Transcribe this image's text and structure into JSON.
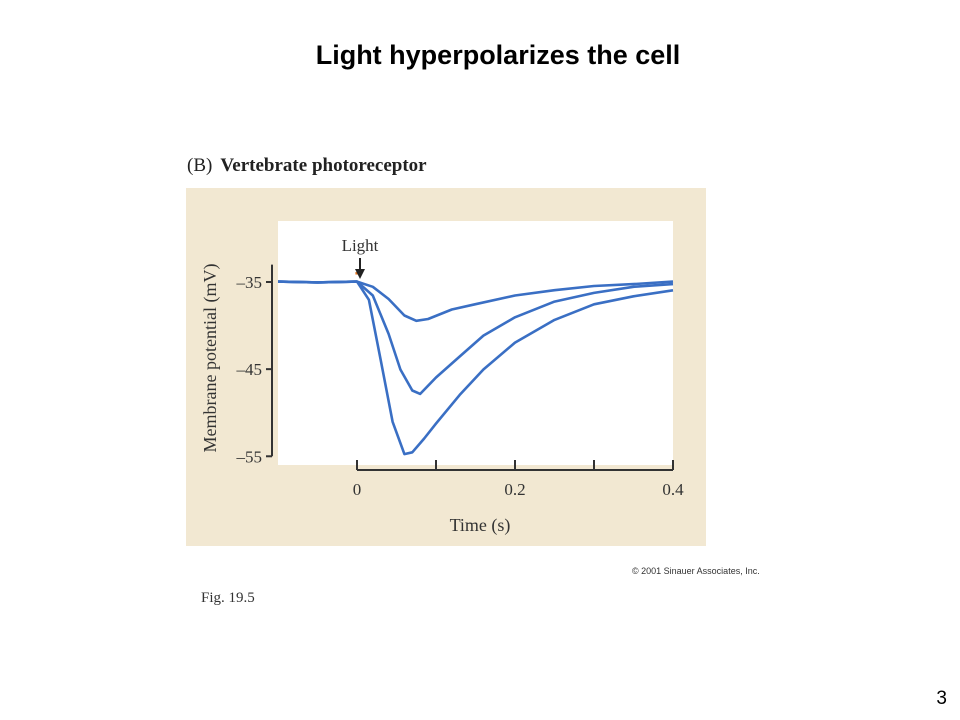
{
  "slide": {
    "title": "Light hyperpolarizes the cell",
    "page_number": "3"
  },
  "figure": {
    "panel_letter": "(B)",
    "panel_title": "Vertebrate photoreceptor",
    "copyright": "© 2001 Sinauer Associates, Inc.",
    "fig_label": "Fig. 19.5",
    "colors": {
      "background": "#f2e8d2",
      "plot_area": "#ffffff",
      "trace": "#3a6fc4",
      "stimulus": "#e0731f"
    }
  },
  "chart_data": {
    "type": "line",
    "xlabel": "Time (s)",
    "ylabel": "Membrane potential (mV)",
    "xlim": [
      -0.1,
      0.4
    ],
    "ylim": [
      -56,
      -28
    ],
    "x_ticks": [
      0,
      0.1,
      0.2,
      0.3,
      0.4
    ],
    "x_tick_labels": [
      "0",
      "",
      "0.2",
      "",
      "0.4"
    ],
    "y_ticks": [
      -35,
      -45,
      -55
    ],
    "y_tick_labels": [
      "–35",
      "–45",
      "–55"
    ],
    "annotations": [
      {
        "text": "Light",
        "x": 0.0,
        "y": -31.5,
        "kind": "arrow"
      }
    ],
    "stimulus": {
      "x_start": -0.002,
      "x_end": 0.006,
      "y": -34
    },
    "series": [
      {
        "x": [
          -0.1,
          -0.05,
          0,
          0.02,
          0.04,
          0.06,
          0.075,
          0.09,
          0.12,
          0.15,
          0.2,
          0.25,
          0.3,
          0.35,
          0.4
        ],
        "y": [
          -35,
          -35,
          -35,
          -35.5,
          -37,
          -38.8,
          -39.5,
          -39.2,
          -38.2,
          -37.5,
          -36.6,
          -35.9,
          -35.5,
          -35.2,
          -35
        ]
      },
      {
        "x": [
          -0.1,
          -0.05,
          0,
          0.02,
          0.04,
          0.055,
          0.07,
          0.08,
          0.1,
          0.13,
          0.16,
          0.2,
          0.25,
          0.3,
          0.35,
          0.4
        ],
        "y": [
          -35,
          -35,
          -35,
          -36.5,
          -41,
          -45,
          -47.5,
          -47.8,
          -46,
          -43.5,
          -41.2,
          -39,
          -37.3,
          -36.2,
          -35.6,
          -35.2
        ]
      },
      {
        "x": [
          -0.1,
          -0.05,
          0,
          0.015,
          0.03,
          0.045,
          0.06,
          0.07,
          0.085,
          0.1,
          0.13,
          0.16,
          0.2,
          0.25,
          0.3,
          0.35,
          0.4
        ],
        "y": [
          -35,
          -35,
          -35,
          -37,
          -44,
          -51,
          -54.8,
          -54.5,
          -53,
          -51.2,
          -48,
          -45,
          -42,
          -39.3,
          -37.6,
          -36.6,
          -36
        ]
      }
    ]
  }
}
